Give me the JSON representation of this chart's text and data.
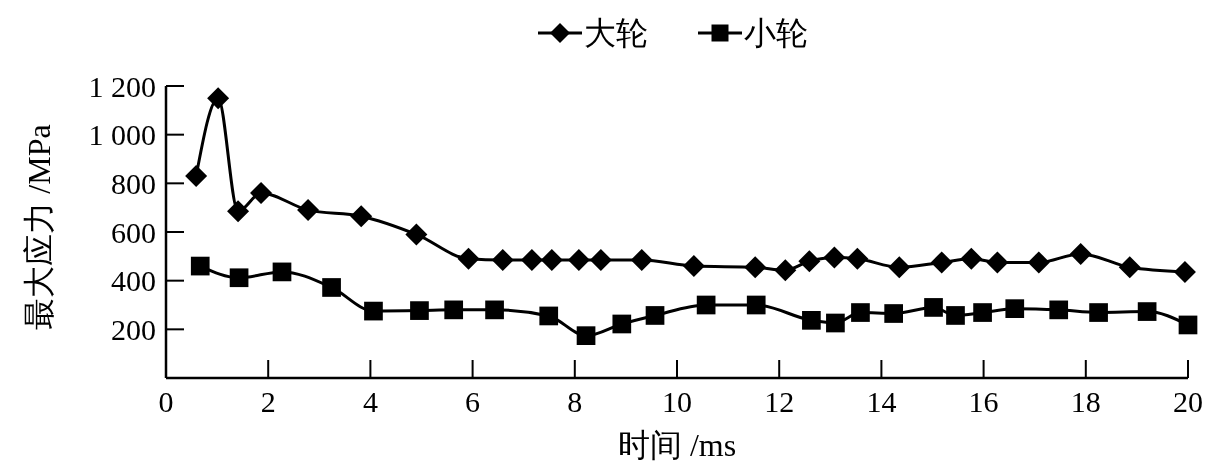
{
  "chart_data": {
    "type": "line",
    "xlabel": "时间 /ms",
    "ylabel": "最大应力 /MPa",
    "xlim": [
      0,
      20
    ],
    "ylim": [
      0,
      1200
    ],
    "xticks": [
      0,
      2,
      4,
      6,
      8,
      10,
      12,
      14,
      16,
      18,
      20
    ],
    "yticks": [
      200,
      400,
      600,
      800,
      {
        "value": 1000,
        "label": "1 000"
      },
      {
        "value": 1200,
        "label": "1 200"
      }
    ],
    "grid": false,
    "legend": "top",
    "series": [
      {
        "name": "大轮",
        "color": "#000000",
        "marker": "diamond",
        "x": [
          0.59,
          1.02,
          1.41,
          1.86,
          2.78,
          3.82,
          4.9,
          5.92,
          6.59,
          7.16,
          7.55,
          8.08,
          8.51,
          9.31,
          10.33,
          11.53,
          12.12,
          12.59,
          13.08,
          13.53,
          14.35,
          15.18,
          15.76,
          16.27,
          17.08,
          17.9,
          18.86,
          19.94
        ],
        "values": [
          830,
          1150,
          685,
          760,
          690,
          665,
          590,
          490,
          485,
          485,
          485,
          485,
          485,
          485,
          460,
          455,
          443,
          480,
          495,
          490,
          455,
          475,
          490,
          475,
          475,
          510,
          455,
          436
        ]
      },
      {
        "name": "小轮",
        "color": "#000000",
        "marker": "square",
        "x": [
          0.67,
          1.43,
          2.27,
          3.24,
          4.06,
          4.96,
          5.63,
          6.43,
          7.49,
          8.22,
          8.92,
          9.57,
          10.57,
          11.55,
          12.63,
          13.1,
          13.59,
          14.24,
          15.02,
          15.45,
          15.98,
          16.61,
          17.47,
          18.25,
          19.2,
          20.0
        ],
        "values": [
          460,
          412,
          436,
          372,
          275,
          277,
          280,
          280,
          255,
          174,
          222,
          257,
          300,
          300,
          237,
          226,
          269,
          265,
          290,
          257,
          269,
          285,
          280,
          269,
          273,
          218
        ]
      }
    ]
  }
}
